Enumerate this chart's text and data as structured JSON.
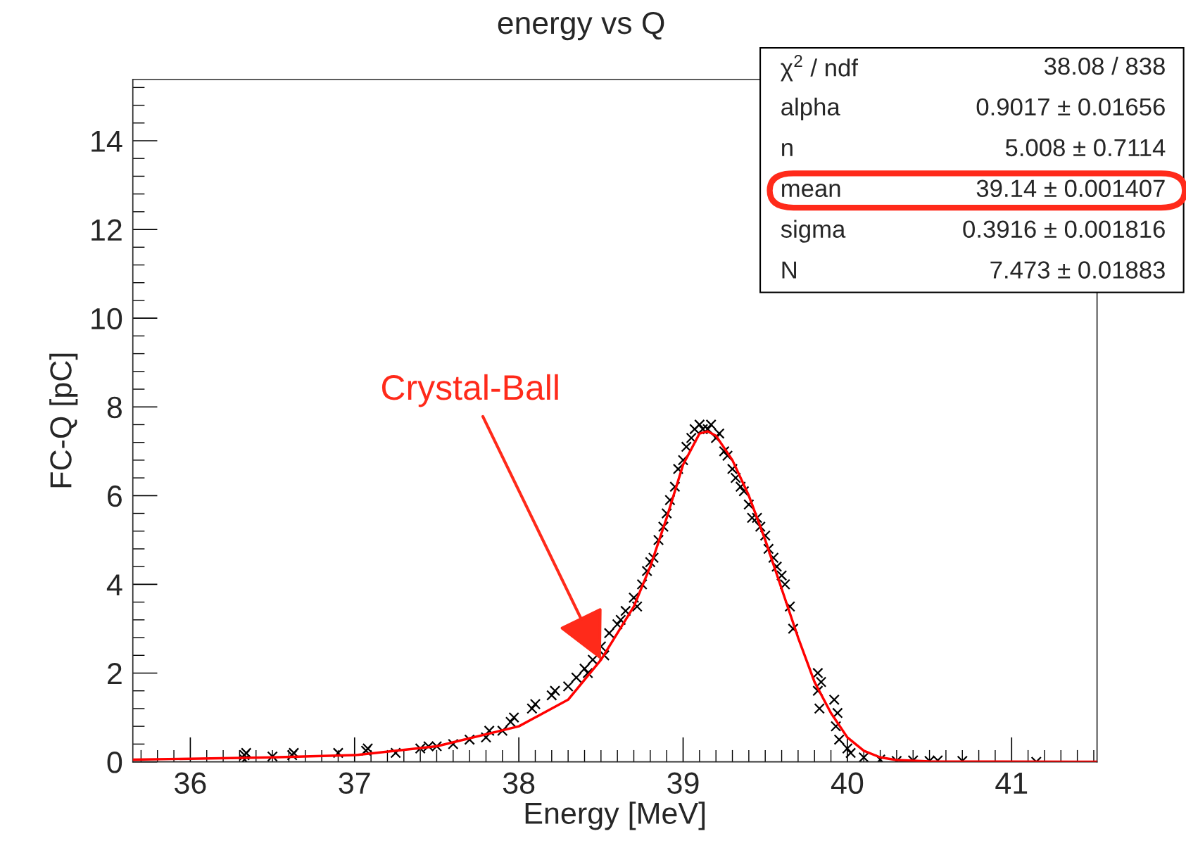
{
  "chart_data": {
    "type": "scatter",
    "title": "energy vs Q",
    "xlabel": "Energy [MeV]",
    "ylabel": "FC-Q [pC]",
    "xlim": [
      35.65,
      41.52
    ],
    "ylim": [
      0,
      15.38
    ],
    "xticks": [
      36,
      37,
      38,
      39,
      40,
      41
    ],
    "yticks": [
      0,
      2,
      4,
      6,
      8,
      10,
      12,
      14
    ],
    "grid": false,
    "legend": false,
    "marker": "cross",
    "series": [
      {
        "color": "#000000",
        "x": [
          36.33,
          36.33,
          36.34,
          36.5,
          36.62,
          36.63,
          36.9,
          37.07,
          37.08,
          37.25,
          37.4,
          37.45,
          37.5,
          37.6,
          37.7,
          37.8,
          37.82,
          37.9,
          37.95,
          37.97,
          38.08,
          38.1,
          38.2,
          38.22,
          38.3,
          38.35,
          38.4,
          38.42,
          38.45,
          38.5,
          38.52,
          38.55,
          38.6,
          38.62,
          38.65,
          38.7,
          38.72,
          38.75,
          38.78,
          38.8,
          38.82,
          38.85,
          38.88,
          38.9,
          38.92,
          38.95,
          38.97,
          39.0,
          39.02,
          39.05,
          39.07,
          39.1,
          39.12,
          39.15,
          39.17,
          39.2,
          39.22,
          39.25,
          39.27,
          39.3,
          39.32,
          39.35,
          39.37,
          39.4,
          39.42,
          39.45,
          39.47,
          39.5,
          39.52,
          39.55,
          39.57,
          39.6,
          39.62,
          39.65,
          39.67,
          39.82,
          39.82,
          39.83,
          39.84,
          39.92,
          39.93,
          39.94,
          39.95,
          40.0,
          40.02,
          40.1,
          40.2,
          40.3,
          40.4,
          40.5,
          40.55,
          40.7,
          41.15
        ],
        "values": [
          0.05,
          0.15,
          0.2,
          0.12,
          0.15,
          0.2,
          0.2,
          0.25,
          0.3,
          0.2,
          0.3,
          0.35,
          0.35,
          0.4,
          0.5,
          0.55,
          0.7,
          0.7,
          0.9,
          1.0,
          1.2,
          1.3,
          1.5,
          1.6,
          1.7,
          1.9,
          2.1,
          2.0,
          2.3,
          2.6,
          2.4,
          2.9,
          3.1,
          3.2,
          3.4,
          3.7,
          3.5,
          4.0,
          4.3,
          4.5,
          4.6,
          5.0,
          5.3,
          5.6,
          5.9,
          6.2,
          6.6,
          6.8,
          7.1,
          7.3,
          7.5,
          7.6,
          7.5,
          7.5,
          7.6,
          7.3,
          7.4,
          7.0,
          6.9,
          6.6,
          6.4,
          6.2,
          6.1,
          5.8,
          5.5,
          5.5,
          5.3,
          5.1,
          4.8,
          4.6,
          4.4,
          4.2,
          4.0,
          3.5,
          3.0,
          2.0,
          1.6,
          1.2,
          1.8,
          1.4,
          0.8,
          1.1,
          0.5,
          0.3,
          0.2,
          0.1,
          0.05,
          0.02,
          0.03,
          0.02,
          0.03,
          0.02,
          0.0
        ]
      },
      {
        "type": "line",
        "marker": "none",
        "color": "#ff0000",
        "x": [
          35.65,
          36.0,
          36.5,
          37.0,
          37.5,
          38.0,
          38.3,
          38.5,
          38.7,
          38.8,
          38.9,
          39.0,
          39.1,
          39.15,
          39.2,
          39.3,
          39.4,
          39.5,
          39.6,
          39.7,
          39.8,
          39.9,
          40.0,
          40.1,
          40.2,
          40.3,
          40.5,
          41.52
        ],
        "values": [
          0.05,
          0.07,
          0.1,
          0.15,
          0.35,
          0.8,
          1.4,
          2.3,
          3.5,
          4.4,
          5.5,
          6.7,
          7.4,
          7.45,
          7.35,
          6.8,
          6.0,
          5.0,
          3.9,
          2.8,
          1.8,
          1.1,
          0.55,
          0.25,
          0.1,
          0.04,
          0.01,
          0.0
        ]
      }
    ],
    "annotations": [
      "χ$^{2}$ / ndf",
      "38.08 / 838",
      "alpha",
      "0.9017 ± 0.01656",
      "n",
      "5.008 ± 0.7114",
      "mean",
      "39.14 ± 0.001407",
      "sigma",
      "0.3916 ± 0.001816",
      "N",
      "7.473 ± 0.01883",
      {
        "text": "Crystal-Ball",
        "x": 38.5,
        "y": 2.3
      }
    ]
  }
}
